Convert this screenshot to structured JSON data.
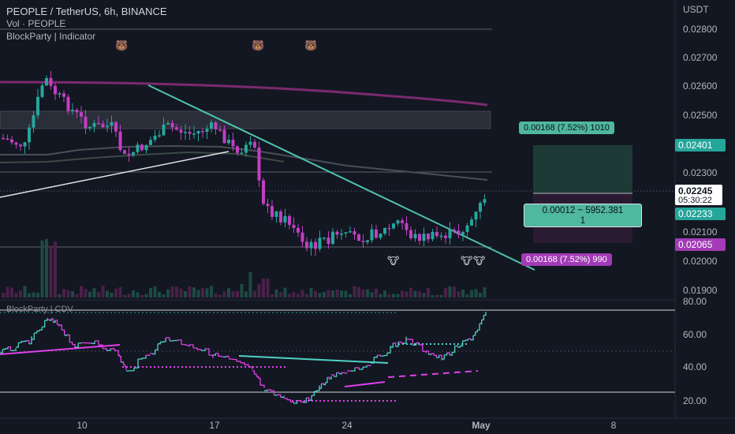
{
  "header": {
    "symbol_line": "PEOPLE / TetherUS, 6h, BINANCE",
    "volume_line": "Vol · PEOPLE",
    "indicator_line": "BlockParty | Indicator",
    "sub_indicator_line": "BlockParty | CDV"
  },
  "price_axis": {
    "currency": "USDT",
    "ticks": [
      "0.02800",
      "0.02700",
      "0.02600",
      "0.02500",
      "0.02300",
      "0.02100",
      "0.02000",
      "0.01900"
    ],
    "current_price": "0.02245",
    "countdown": "05:30:22",
    "take_profit_tag": "0.02401",
    "entry_tag": "0.02233",
    "stop_loss_tag": "0.02065"
  },
  "sub_axis": {
    "ticks": [
      "80.00",
      "60.00",
      "40.00",
      "20.00"
    ]
  },
  "time_axis": {
    "ticks": [
      "10",
      "17",
      "24",
      "May",
      "8"
    ]
  },
  "position_tool": {
    "target_label": "0.00168 (7.52%) 1010",
    "stop_label": "0.00168 (7.52%) 990",
    "center_line1": "0.00012 ~ 5952.381",
    "center_line2": "1"
  },
  "markers": {
    "bear_icon": "bear-face-icon",
    "bull_icon": "cow-face-icon"
  },
  "colors": {
    "background": "#131722",
    "candle_up": "#26a69a",
    "candle_down": "#c13fc3",
    "trendline": "#4fc3b0",
    "ma_purple": "#7b2a6e",
    "profit_zone": "#1e3a36",
    "loss_zone": "#2a1b33",
    "stop_tag": "#a23bb5",
    "cdv_up": "#4fd1c5",
    "cdv_down": "#e040e8"
  }
}
